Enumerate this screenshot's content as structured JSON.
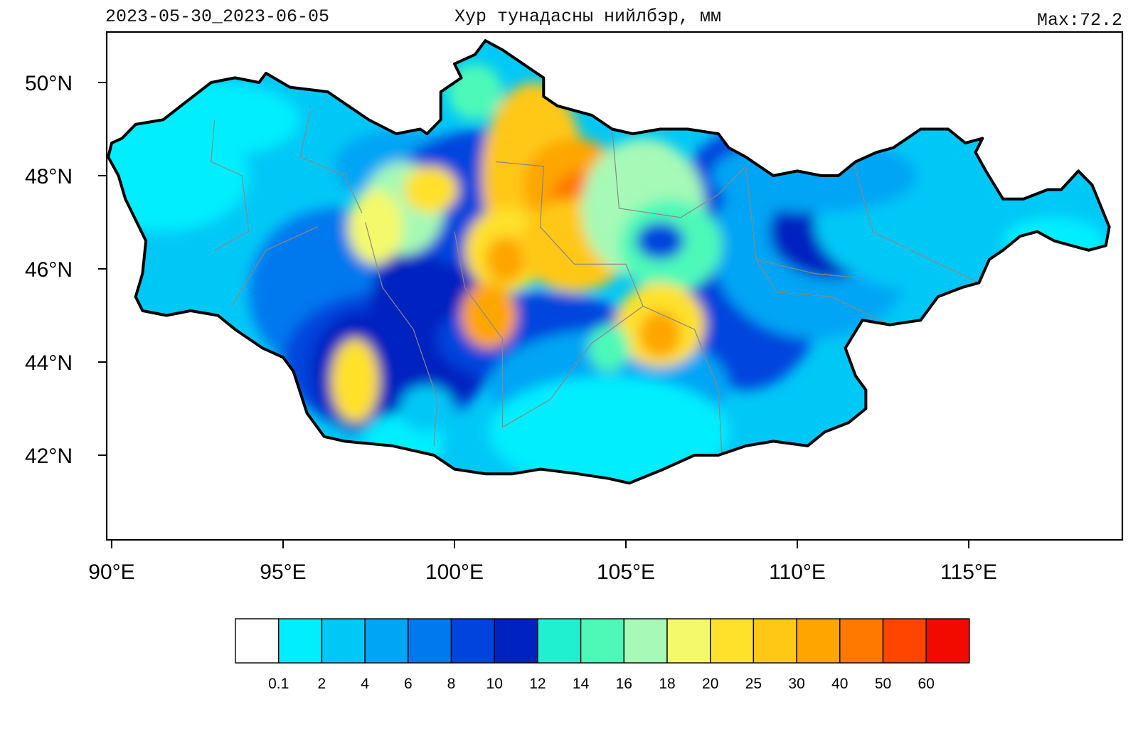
{
  "header": {
    "date_range": "2023-05-30_2023-06-05",
    "title": "Хур тунадасны нийлбэр, мм",
    "max_label": "Max:72.2"
  },
  "map": {
    "region": "Mongolia",
    "projection": "lat-lon",
    "lon_range": [
      89.8,
      118.9
    ],
    "lat_range": [
      40.4,
      51.0
    ],
    "x_ticks": [
      {
        "value": 90,
        "label": "90°E"
      },
      {
        "value": 95,
        "label": "95°E"
      },
      {
        "value": 100,
        "label": "100°E"
      },
      {
        "value": 105,
        "label": "105°E"
      },
      {
        "value": 110,
        "label": "110°E"
      },
      {
        "value": 115,
        "label": "115°E"
      }
    ],
    "y_ticks": [
      {
        "value": 50,
        "label": "50°N"
      },
      {
        "value": 48,
        "label": "48°N"
      },
      {
        "value": 46,
        "label": "46°N"
      },
      {
        "value": 44,
        "label": "44°N"
      },
      {
        "value": 42,
        "label": "42°N"
      }
    ],
    "border_color": "#000000",
    "province_border_color": "#888888"
  },
  "colorbar": {
    "levels": [
      "0.1",
      "2",
      "4",
      "6",
      "8",
      "10",
      "12",
      "14",
      "16",
      "18",
      "20",
      "25",
      "30",
      "40",
      "50",
      "60"
    ],
    "colors": [
      "#ffffff",
      "#00eeff",
      "#00c8f6",
      "#00a5f5",
      "#0078ee",
      "#0044dd",
      "#0022c0",
      "#20f0d0",
      "#4ef9b8",
      "#a6f9b6",
      "#f3f96a",
      "#ffe12c",
      "#ffc814",
      "#ffa500",
      "#ff7800",
      "#ff4500",
      "#f20a00"
    ]
  }
}
